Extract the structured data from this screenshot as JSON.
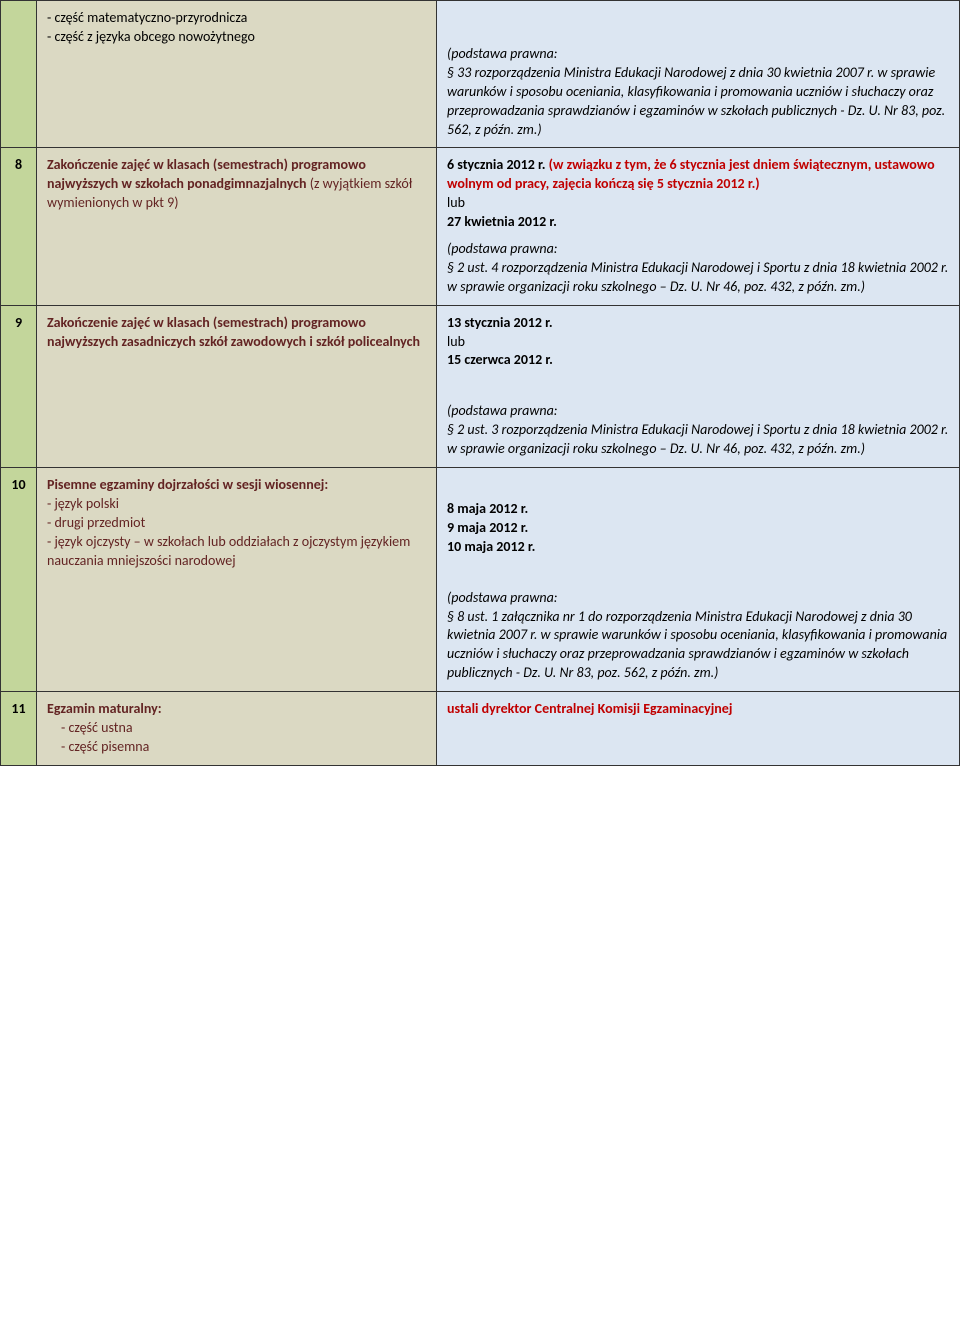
{
  "colors": {
    "num_bg": "#c3d69b",
    "left_bg": "#dbd9c3",
    "right_bg": "#dce6f2",
    "brown": "#632423",
    "red": "#c00000"
  },
  "rows": [
    {
      "num": "",
      "left_items": [
        "część matematyczno-przyrodnicza",
        "część z języka obcego nowożytnego"
      ],
      "legal_intro": "(podstawa prawna:",
      "legal_body": "§ 33 rozporządzenia Ministra Edukacji Narodowej z dnia 30 kwietnia 2007 r. w sprawie warunków i sposobu oceniania, klasyfikowania i promowania uczniów i słuchaczy oraz przeprowadzania sprawdzianów i egzaminów w szkołach publicznych - Dz. U. Nr 83, poz. 562, z późn. zm.)"
    },
    {
      "num": "8",
      "left_html": "<span class='boldbrown'>Zakończenie zajęć w klasach (semestrach) programowo najwyższych w szkołach ponadgimnazjalnych </span><span class='brown'>(z wyjątkiem szkół wymienionych w pkt 9)</span>",
      "right_main_html": "<span class='bold'>6 stycznia 2012 r. </span><span class='redbold'>(w związku z tym, że 6 stycznia jest dniem świątecznym, ustawowo wolnym od pracy, zajęcia kończą się 5 stycznia 2012 r.)</span><br>lub<br><span class='bold'>27 kwietnia 2012 r.</span>",
      "legal_intro": "(podstawa prawna:",
      "legal_body": "§ 2 ust. 4 rozporządzenia Ministra Edukacji Narodowej i  Sportu z dnia 18 kwietnia 2002 r. w sprawie organizacji roku szkolnego – Dz. U. Nr 46, poz. 432, z późn. zm.)"
    },
    {
      "num": "9",
      "left_html": "<span class='boldbrown'>Zakończenie zajęć w klasach (semestrach) programowo najwyższych zasadniczych szkół zawodowych i szkół policealnych</span>",
      "right_main_html": "<span class='bold'>13 stycznia 2012 r.</span><br>lub<br><span class='bold'>15 czerwca 2012 r.</span>",
      "legal_intro": "(podstawa prawna:",
      "legal_body": "§ 2 ust. 3 rozporządzenia Ministra Edukacji Narodowej i Sportu z dnia 18 kwietnia 2002 r. w sprawie organizacji roku szkolnego – Dz. U. Nr 46, poz. 432, z późn. zm.)"
    },
    {
      "num": "10",
      "left_title": "Pisemne egzaminy dojrzałości w sesji wiosennej:",
      "left_items2": [
        "język polski",
        "drugi przedmiot",
        "język ojczysty – w szkołach lub oddziałach z ojczystym językiem nauczania mniejszości narodowej"
      ],
      "right_main_html": "<span class='bold'>8 maja 2012 r.<br>9 maja 2012 r.<br>10 maja 2012 r.</span>",
      "legal_intro": "(podstawa prawna:",
      "legal_body": " § 8 ust. 1 załącznika nr 1 do rozporządzenia Ministra Edukacji Narodowej z dnia 30 kwietnia 2007 r. w sprawie warunków i sposobu oceniania, klasyfikowania i promowania uczniów i słuchaczy oraz przeprowadzania sprawdzianów i  egzaminów w szkołach publicznych - Dz. U. Nr 83, poz. 562, z późn. zm.)"
    },
    {
      "num": "11",
      "left_title": "Egzamin maturalny:",
      "left_items3": [
        "część ustna",
        "część pisemna"
      ],
      "right_main_html": "<span class='redbold'>ustali dyrektor Centralnej Komisji Egzaminacyjnej</span>"
    }
  ]
}
